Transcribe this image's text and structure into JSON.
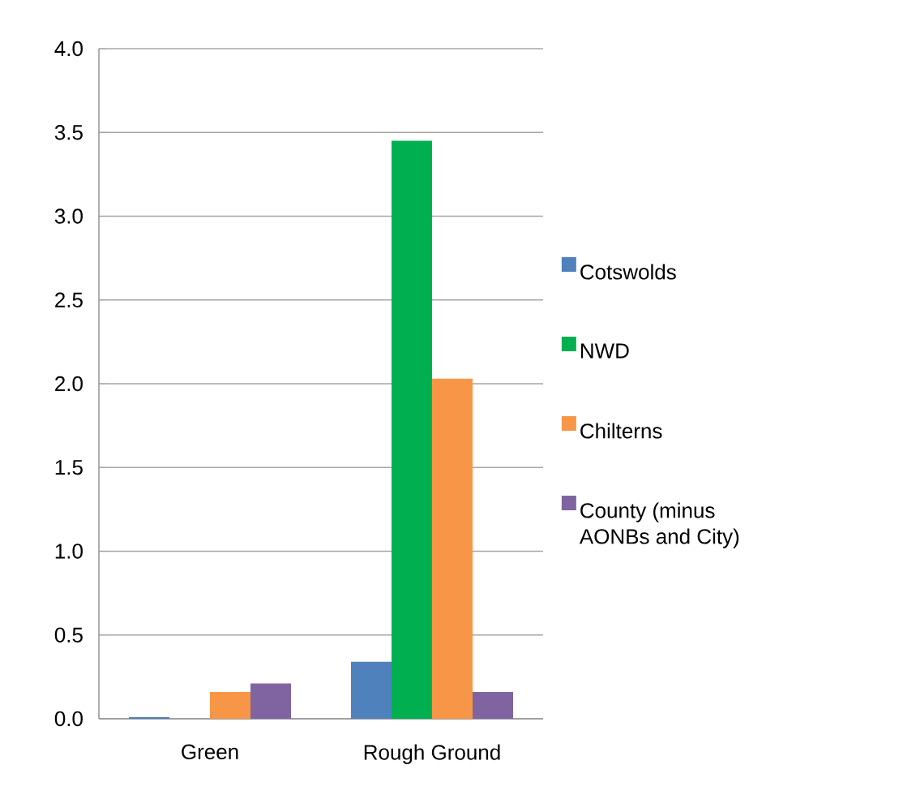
{
  "chart_data": {
    "type": "bar",
    "categories": [
      "Green",
      "Rough Ground"
    ],
    "series": [
      {
        "name": "Cotswolds",
        "color": "#4f81bd",
        "values": [
          0.01,
          0.34
        ]
      },
      {
        "name": "NWD",
        "color": "#00b050",
        "values": [
          0,
          3.45
        ]
      },
      {
        "name": "Chilterns",
        "color": "#f79646",
        "values": [
          0.16,
          2.03
        ]
      },
      {
        "name": "County (minus AONBs and City)",
        "color": "#8064a2",
        "values": [
          0.21,
          0.16
        ]
      }
    ],
    "ylim": [
      0,
      4.0
    ],
    "yticks": [
      {
        "value": 0,
        "label": "0.0"
      },
      {
        "value": 0.5,
        "label": "0.5"
      },
      {
        "value": 1,
        "label": "1.0"
      },
      {
        "value": 1.5,
        "label": "1.5"
      },
      {
        "value": 2,
        "label": "2.0"
      },
      {
        "value": 2.5,
        "label": "2.5"
      },
      {
        "value": 3,
        "label": "3.0"
      },
      {
        "value": 3.5,
        "label": "3.5"
      },
      {
        "value": 4,
        "label": "4.0"
      }
    ],
    "grid": "y",
    "legend": "right"
  }
}
